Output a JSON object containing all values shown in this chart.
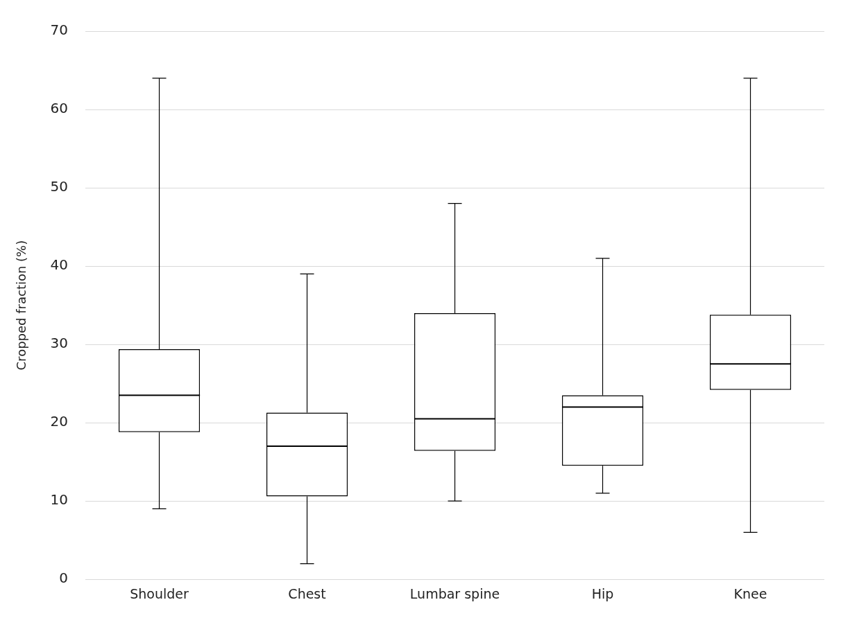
{
  "chart_data": {
    "type": "box",
    "ylabel": "Cropped fraction (%)",
    "categories": [
      "Shoulder",
      "Chest",
      "Lumbar spine",
      "Hip",
      "Knee"
    ],
    "boxes": [
      {
        "low": 9,
        "q1": 18.8,
        "median": 23.5,
        "q3": 29.4,
        "high": 64
      },
      {
        "low": 2,
        "q1": 10.6,
        "median": 17,
        "q3": 21.3,
        "high": 39
      },
      {
        "low": 10,
        "q1": 16.4,
        "median": 20.5,
        "q3": 34,
        "high": 48
      },
      {
        "low": 11,
        "q1": 14.5,
        "median": 22,
        "q3": 23.5,
        "high": 41
      },
      {
        "low": 6,
        "q1": 24.2,
        "median": 27.5,
        "q3": 33.8,
        "high": 64
      }
    ],
    "ylim": [
      0,
      70
    ],
    "yticks": [
      0,
      10,
      20,
      30,
      40,
      50,
      60,
      70
    ],
    "grid": "y",
    "legend": false
  }
}
